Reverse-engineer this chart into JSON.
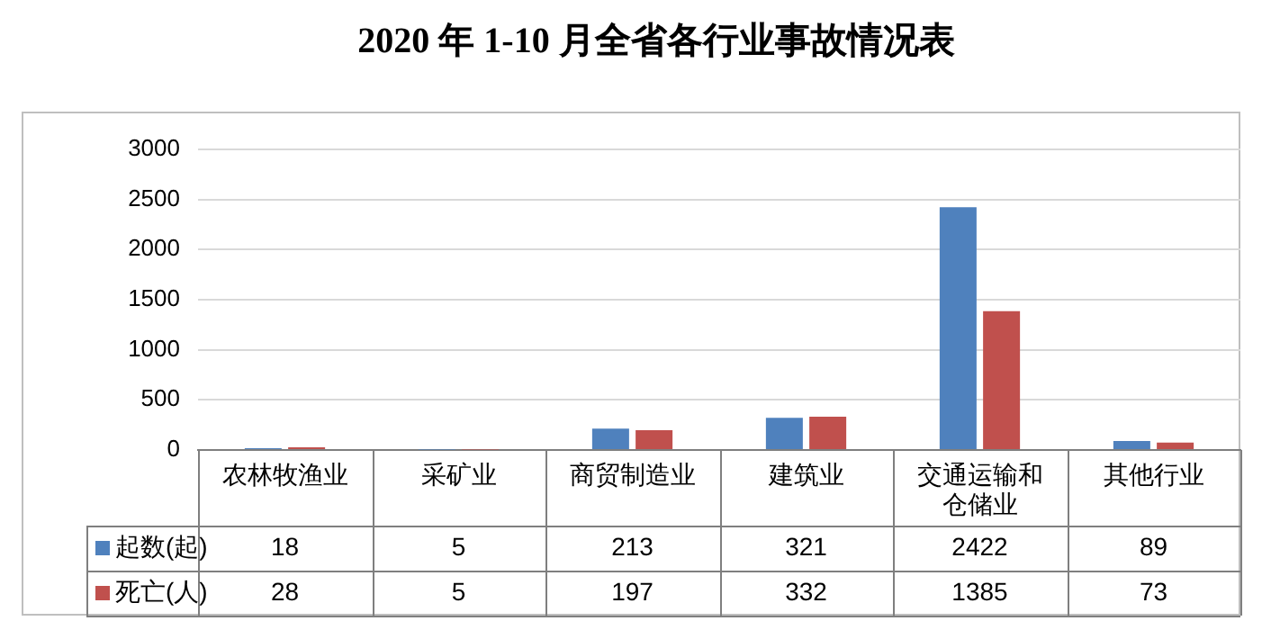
{
  "chart_data": {
    "type": "bar",
    "title": "2020 年 1-10 月全省各行业事故情况表",
    "categories": [
      "农林牧渔业",
      "采矿业",
      "商贸制造业",
      "建筑业",
      "交通运输和仓储业",
      "其他行业"
    ],
    "series": [
      {
        "name": "起数(起)",
        "color": "#4f81bd",
        "values": [
          18,
          5,
          213,
          321,
          2422,
          89
        ]
      },
      {
        "name": "死亡(人)",
        "color": "#c0504d",
        "values": [
          28,
          5,
          197,
          332,
          1385,
          73
        ]
      }
    ],
    "ylim": [
      0,
      3000
    ],
    "yticks": [
      0,
      500,
      1000,
      1500,
      2000,
      2500,
      3000
    ],
    "grid": "y",
    "legend": "bottom",
    "data_labels": true
  }
}
